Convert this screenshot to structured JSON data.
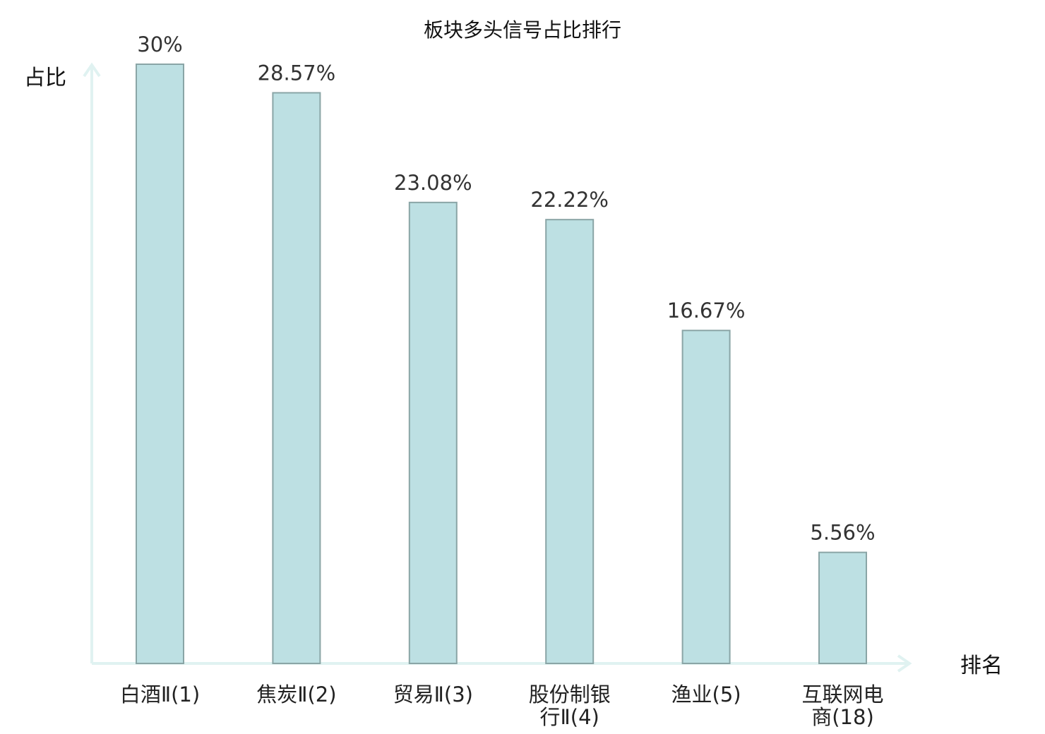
{
  "chart_data": {
    "type": "bar",
    "title": "板块多头信号占比排行",
    "ylabel": "占比",
    "xlabel": "排名",
    "ylim": [
      0,
      30
    ],
    "value_unit": "%",
    "categories": [
      [
        "白酒Ⅱ(1)"
      ],
      [
        "焦炭Ⅱ(2)"
      ],
      [
        "贸易Ⅱ(3)"
      ],
      [
        "股份制银",
        "行Ⅱ(4)"
      ],
      [
        "渔业(5)"
      ],
      [
        "互联网电",
        "商(18)"
      ]
    ],
    "values": [
      30,
      28.57,
      23.08,
      22.22,
      16.67,
      5.56
    ],
    "value_labels": [
      "30%",
      "28.57%",
      "23.08%",
      "22.22%",
      "16.67%",
      "5.56%"
    ],
    "highlight_index": 5,
    "colors": {
      "bar_fill": "#bde0e3",
      "bar_stroke": "#8aa5a6",
      "axis": "#e0f2f1",
      "highlight_label": "#e02020",
      "label": "#222222"
    }
  }
}
